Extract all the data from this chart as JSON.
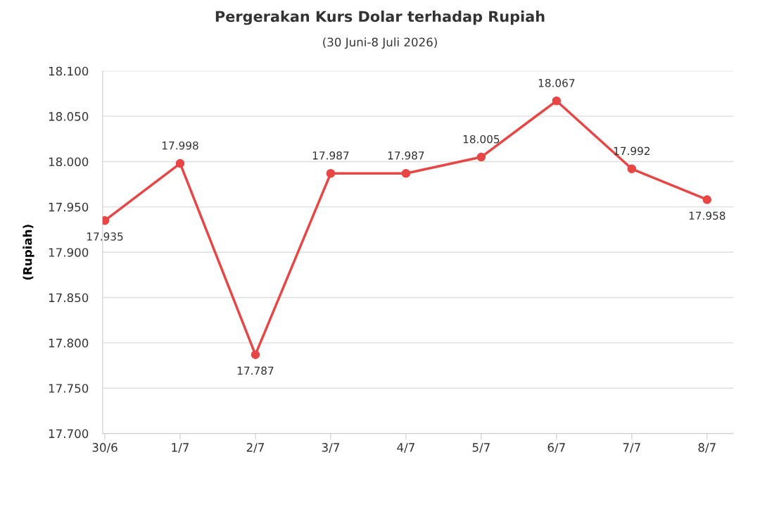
{
  "chart_data": {
    "type": "line",
    "title": "Pergerakan Kurs Dolar terhadap Rupiah",
    "subtitle": "(30 Juni-8 Juli 2026)",
    "ylabel": "(Rupiah)",
    "categories": [
      "30/6",
      "1/7",
      "2/7",
      "3/7",
      "4/7",
      "5/7",
      "6/7",
      "7/7",
      "8/7"
    ],
    "series": [
      {
        "color": "#e84545",
        "values": [
          17935,
          17998,
          17787,
          17987,
          17987,
          18005,
          18067,
          17992,
          17958
        ],
        "value_labels": [
          "17.935",
          "17.998",
          "17.787",
          "17.987",
          "17.987",
          "18.005",
          "18.067",
          "17.992",
          "17.958"
        ]
      }
    ],
    "ylim": [
      17700,
      18100
    ],
    "yticks": [
      {
        "value": 17700,
        "label": "17.700"
      },
      {
        "value": 17750,
        "label": "17.750"
      },
      {
        "value": 17800,
        "label": "17.800"
      },
      {
        "value": 17850,
        "label": "17.850"
      },
      {
        "value": 17900,
        "label": "17.900"
      },
      {
        "value": 17950,
        "label": "17.950"
      },
      {
        "value": 18000,
        "label": "18.000"
      },
      {
        "value": 18050,
        "label": "18.050"
      },
      {
        "value": 18100,
        "label": "18.100"
      }
    ],
    "grid": "y",
    "marker": "circle",
    "line_style": "solid"
  }
}
